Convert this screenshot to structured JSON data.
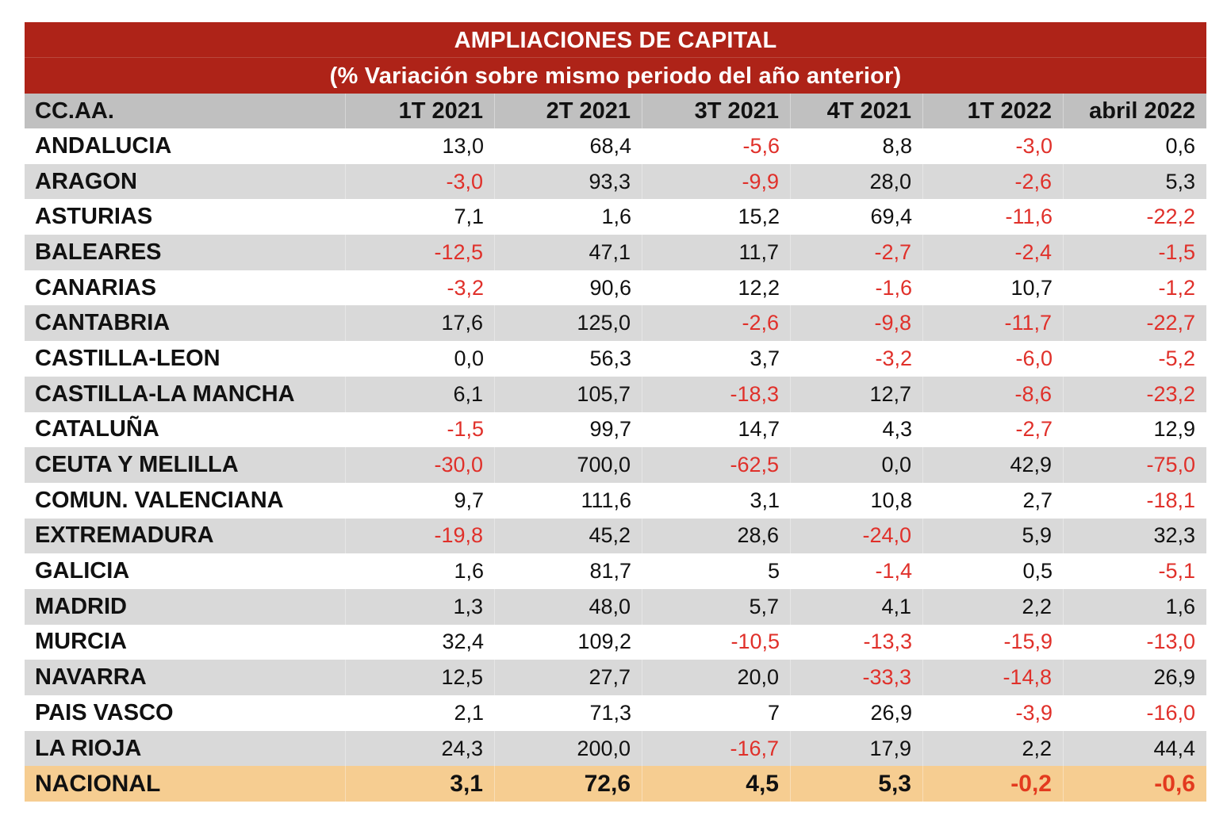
{
  "title": {
    "line1": "AMPLIACIONES DE CAPITAL",
    "line2": "(%  Variación sobre mismo periodo del año anterior)"
  },
  "colors": {
    "title_band": "#ae2318",
    "header_band": "#c0c0c0",
    "stripe": "#d9d9d9",
    "total_band": "#f6cd91",
    "negative_text": "#e0302a"
  },
  "columns": [
    "CC.AA.",
    "1T 2021",
    "2T 2021",
    "3T 2021",
    "4T 2021",
    "1T 2022",
    "abril 2022"
  ],
  "rows": [
    {
      "region": "ANDALUCIA",
      "values": [
        "13,0",
        "68,4",
        "-5,6",
        "8,8",
        "-3,0",
        "0,6"
      ]
    },
    {
      "region": "ARAGON",
      "values": [
        "-3,0",
        "93,3",
        "-9,9",
        "28,0",
        "-2,6",
        "5,3"
      ]
    },
    {
      "region": "ASTURIAS",
      "values": [
        "7,1",
        "1,6",
        "15,2",
        "69,4",
        "-11,6",
        "-22,2"
      ]
    },
    {
      "region": "BALEARES",
      "values": [
        "-12,5",
        "47,1",
        "11,7",
        "-2,7",
        "-2,4",
        "-1,5"
      ]
    },
    {
      "region": "CANARIAS",
      "values": [
        "-3,2",
        "90,6",
        "12,2",
        "-1,6",
        "10,7",
        "-1,2"
      ]
    },
    {
      "region": "CANTABRIA",
      "values": [
        "17,6",
        "125,0",
        "-2,6",
        "-9,8",
        "-11,7",
        "-22,7"
      ]
    },
    {
      "region": "CASTILLA-LEON",
      "values": [
        "0,0",
        "56,3",
        "3,7",
        "-3,2",
        "-6,0",
        "-5,2"
      ]
    },
    {
      "region": "CASTILLA-LA MANCHA",
      "values": [
        "6,1",
        "105,7",
        "-18,3",
        "12,7",
        "-8,6",
        "-23,2"
      ]
    },
    {
      "region": "CATALUÑA",
      "values": [
        "-1,5",
        "99,7",
        "14,7",
        "4,3",
        "-2,7",
        "12,9"
      ]
    },
    {
      "region": "CEUTA Y MELILLA",
      "values": [
        "-30,0",
        "700,0",
        "-62,5",
        "0,0",
        "42,9",
        "-75,0"
      ]
    },
    {
      "region": "COMUN. VALENCIANA",
      "values": [
        "9,7",
        "111,6",
        "3,1",
        "10,8",
        "2,7",
        "-18,1"
      ]
    },
    {
      "region": "EXTREMADURA",
      "values": [
        "-19,8",
        "45,2",
        "28,6",
        "-24,0",
        "5,9",
        "32,3"
      ]
    },
    {
      "region": "GALICIA",
      "values": [
        "1,6",
        "81,7",
        "5",
        "-1,4",
        "0,5",
        "-5,1"
      ]
    },
    {
      "region": "MADRID",
      "values": [
        "1,3",
        "48,0",
        "5,7",
        "4,1",
        "2,2",
        "1,6"
      ]
    },
    {
      "region": "MURCIA",
      "values": [
        "32,4",
        "109,2",
        "-10,5",
        "-13,3",
        "-15,9",
        "-13,0"
      ]
    },
    {
      "region": "NAVARRA",
      "values": [
        "12,5",
        "27,7",
        "20,0",
        "-33,3",
        "-14,8",
        "26,9"
      ]
    },
    {
      "region": "PAIS VASCO",
      "values": [
        "2,1",
        "71,3",
        "7",
        "26,9",
        "-3,9",
        "-16,0"
      ]
    },
    {
      "region": "LA RIOJA",
      "values": [
        "24,3",
        "200,0",
        "-16,7",
        "17,9",
        "2,2",
        "44,4"
      ]
    }
  ],
  "total": {
    "region": "NACIONAL",
    "values": [
      "3,1",
      "72,6",
      "4,5",
      "5,3",
      "-0,2",
      "-0,6"
    ]
  }
}
